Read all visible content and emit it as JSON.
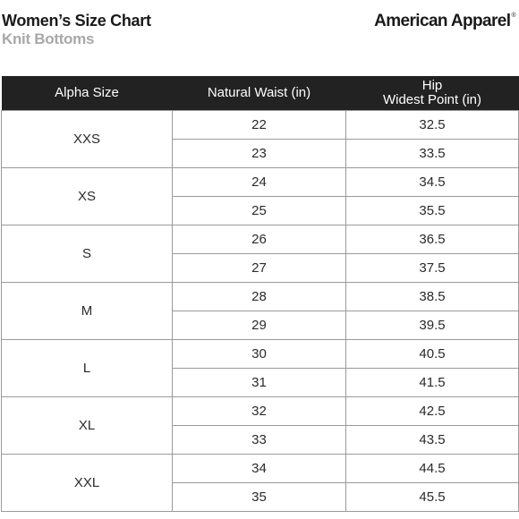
{
  "header": {
    "title": "Women’s Size Chart",
    "subtitle": "Knit Bottoms",
    "brand": "American Apparel",
    "brand_mark": "®"
  },
  "table": {
    "columns": {
      "alpha": "Alpha Size",
      "waist": "Natural Waist (in)",
      "hip_line1": "Hip",
      "hip_line2": "Widest Point (in)"
    },
    "groups": [
      {
        "size": "XXS",
        "rows": [
          {
            "waist": "22",
            "hip": "32.5"
          },
          {
            "waist": "23",
            "hip": "33.5"
          }
        ]
      },
      {
        "size": "XS",
        "rows": [
          {
            "waist": "24",
            "hip": "34.5"
          },
          {
            "waist": "25",
            "hip": "35.5"
          }
        ]
      },
      {
        "size": "S",
        "rows": [
          {
            "waist": "26",
            "hip": "36.5"
          },
          {
            "waist": "27",
            "hip": "37.5"
          }
        ]
      },
      {
        "size": "M",
        "rows": [
          {
            "waist": "28",
            "hip": "38.5"
          },
          {
            "waist": "29",
            "hip": "39.5"
          }
        ]
      },
      {
        "size": "L",
        "rows": [
          {
            "waist": "30",
            "hip": "40.5"
          },
          {
            "waist": "31",
            "hip": "41.5"
          }
        ]
      },
      {
        "size": "XL",
        "rows": [
          {
            "waist": "32",
            "hip": "42.5"
          },
          {
            "waist": "33",
            "hip": "43.5"
          }
        ]
      },
      {
        "size": "XXL",
        "rows": [
          {
            "waist": "34",
            "hip": "44.5"
          },
          {
            "waist": "35",
            "hip": "45.5"
          }
        ]
      }
    ]
  },
  "colors": {
    "header_bg": "#222222",
    "header_text": "#ffffff",
    "subtitle": "#a8a8a8",
    "border": "#9a9a9a"
  }
}
